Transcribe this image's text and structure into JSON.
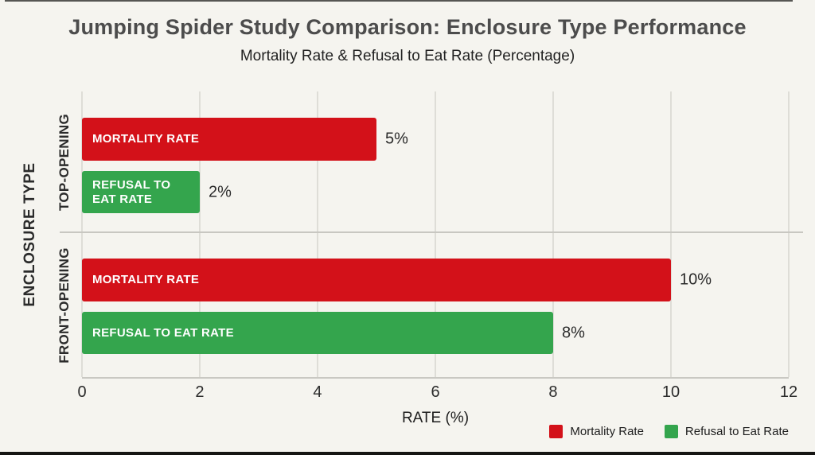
{
  "title": "Jumping Spider Study Comparison: Enclosure Type Performance",
  "subtitle": "Mortality Rate & Refusal to Eat Rate (Percentage)",
  "axes": {
    "x_label": "RATE (%)",
    "y_label": "ENCLOSURE TYPE",
    "x_ticks": [
      "0",
      "2",
      "4",
      "6",
      "8",
      "10",
      "12"
    ],
    "x_max": 12
  },
  "colors": {
    "background": "#f5f4ef",
    "mortality_red": "#d31119",
    "refusal_green": "#34a54d",
    "gridline": "#deddd7",
    "text_dark": "#2b2b2b"
  },
  "groups": [
    {
      "label": "TOP-OPENING",
      "bars": [
        {
          "name": "MORTALITY RATE",
          "value": 5,
          "value_label": "5%",
          "color": "#d31119"
        },
        {
          "name": "REFUSAL TO EAT RATE",
          "value": 2,
          "value_label": "2%",
          "color": "#34a54d"
        }
      ]
    },
    {
      "label": "FRONT-OPENING",
      "bars": [
        {
          "name": "MORTALITY RATE",
          "value": 10,
          "value_label": "10%",
          "color": "#d31119"
        },
        {
          "name": "REFUSAL TO EAT RATE",
          "value": 8,
          "value_label": "8%",
          "color": "#34a54d"
        }
      ]
    }
  ],
  "legend": [
    {
      "label": "Mortality Rate",
      "color": "#d31119"
    },
    {
      "label": "Refusal to Eat Rate",
      "color": "#34a54d"
    }
  ],
  "chart_data": {
    "type": "bar",
    "orientation": "horizontal",
    "title": "Jumping Spider Study Comparison: Enclosure Type Performance",
    "subtitle": "Mortality Rate & Refusal to Eat Rate (Percentage)",
    "xlabel": "RATE (%)",
    "ylabel": "ENCLOSURE TYPE",
    "categories": [
      "Top-Opening",
      "Front-Opening"
    ],
    "series": [
      {
        "name": "Mortality Rate",
        "values": [
          5,
          10
        ],
        "color": "#d31119"
      },
      {
        "name": "Refusal to Eat Rate",
        "values": [
          2,
          8
        ],
        "color": "#34a54d"
      }
    ],
    "xlim": [
      0,
      12
    ],
    "xticks": [
      0,
      2,
      4,
      6,
      8,
      10,
      12
    ],
    "grid": true,
    "legend_position": "bottom-right",
    "data_labels": [
      "5%",
      "2%",
      "10%",
      "8%"
    ]
  }
}
